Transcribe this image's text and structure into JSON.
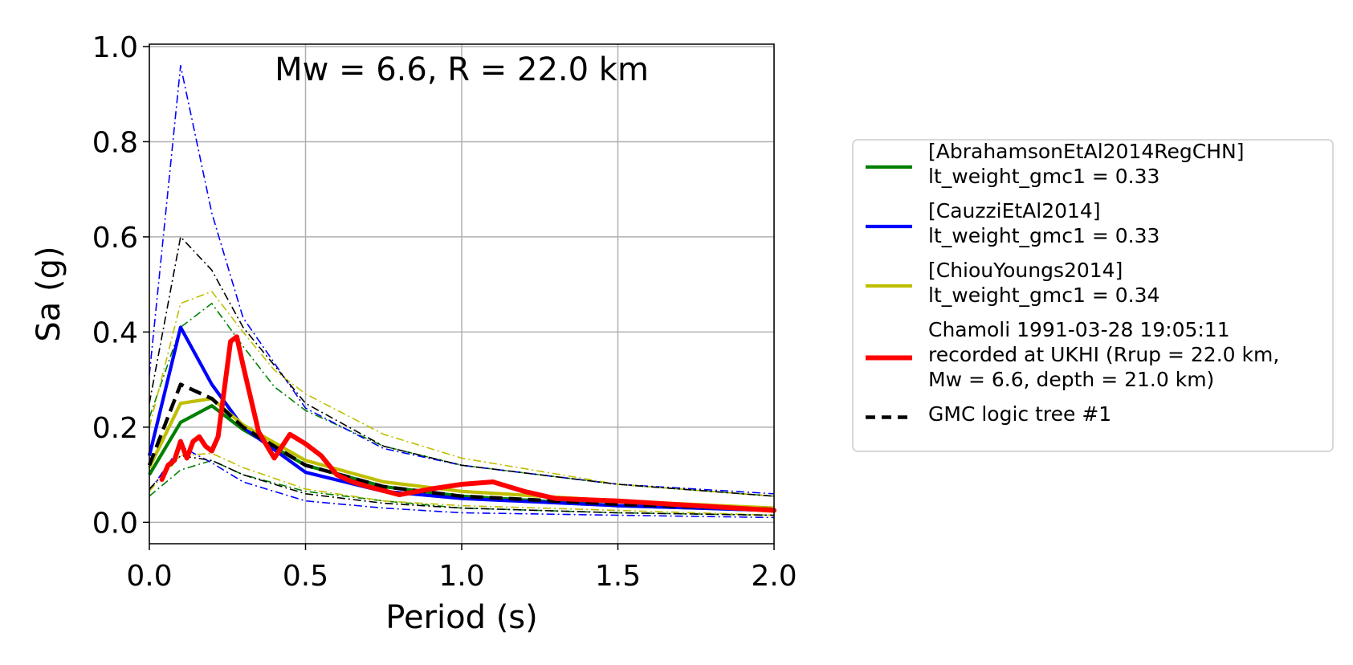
{
  "chart_data": {
    "type": "line",
    "title": "Mw = 6.6, R = 22.0 km",
    "xlabel": "Period (s)",
    "ylabel": "Sa (g)",
    "xlim": [
      0.0,
      2.0
    ],
    "ylim": [
      -0.045,
      1.005
    ],
    "xticks": [
      0.0,
      0.5,
      1.0,
      1.5,
      2.0
    ],
    "xtick_labels": [
      "0.0",
      "0.5",
      "1.0",
      "1.5",
      "2.0"
    ],
    "yticks": [
      0.0,
      0.2,
      0.4,
      0.6,
      0.8,
      1.0
    ],
    "ytick_labels": [
      "0.0",
      "0.2",
      "0.4",
      "0.6",
      "0.8",
      "1.0"
    ],
    "grid": true,
    "legend_position": "outside-right",
    "series": [
      {
        "name": "[AbrahamsonEtAl2014RegCHN]\nlt_weight_gmc1 = 0.33",
        "color": "#008000",
        "style": "solid",
        "role": "median",
        "x": [
          0.0,
          0.1,
          0.2,
          0.3,
          0.5,
          0.75,
          1.0,
          1.5,
          2.0
        ],
        "y": [
          0.1,
          0.21,
          0.245,
          0.195,
          0.12,
          0.075,
          0.055,
          0.035,
          0.025
        ]
      },
      {
        "name": "",
        "color": "#008000",
        "style": "dashdot",
        "role": "upper",
        "x": [
          0.0,
          0.1,
          0.2,
          0.3,
          0.4,
          0.5,
          0.75,
          1.0,
          1.5,
          2.0
        ],
        "y": [
          0.22,
          0.41,
          0.46,
          0.37,
          0.285,
          0.235,
          0.16,
          0.12,
          0.08,
          0.055
        ]
      },
      {
        "name": "",
        "color": "#008000",
        "style": "dashdot",
        "role": "lower",
        "x": [
          0.0,
          0.1,
          0.2,
          0.3,
          0.5,
          0.75,
          1.0,
          1.5,
          2.0
        ],
        "y": [
          0.055,
          0.11,
          0.13,
          0.1,
          0.065,
          0.045,
          0.03,
          0.02,
          0.015
        ]
      },
      {
        "name": "[CauzziEtAl2014]\nlt_weight_gmc1 = 0.33",
        "color": "#0000ff",
        "style": "solid",
        "role": "median",
        "x": [
          0.0,
          0.1,
          0.2,
          0.3,
          0.5,
          0.75,
          1.0,
          1.5,
          2.0
        ],
        "y": [
          0.14,
          0.41,
          0.29,
          0.2,
          0.105,
          0.065,
          0.05,
          0.035,
          0.025
        ]
      },
      {
        "name": "",
        "color": "#0000ff",
        "style": "dashdot",
        "role": "upper",
        "x": [
          0.0,
          0.1,
          0.2,
          0.3,
          0.5,
          0.75,
          1.0,
          1.5,
          2.0
        ],
        "y": [
          0.31,
          0.96,
          0.65,
          0.43,
          0.24,
          0.155,
          0.12,
          0.08,
          0.06
        ]
      },
      {
        "name": "",
        "color": "#0000ff",
        "style": "dashdot",
        "role": "lower",
        "x": [
          0.0,
          0.1,
          0.2,
          0.3,
          0.5,
          0.75,
          1.0,
          1.5,
          2.0
        ],
        "y": [
          0.065,
          0.16,
          0.125,
          0.085,
          0.045,
          0.03,
          0.02,
          0.015,
          0.01
        ]
      },
      {
        "name": "[ChiouYoungs2014]\nlt_weight_gmc1 = 0.34",
        "color": "#bfbf00",
        "style": "solid",
        "role": "median",
        "x": [
          0.0,
          0.1,
          0.2,
          0.3,
          0.5,
          0.75,
          1.0,
          1.5,
          2.0
        ],
        "y": [
          0.115,
          0.25,
          0.26,
          0.205,
          0.13,
          0.085,
          0.065,
          0.045,
          0.03
        ]
      },
      {
        "name": "",
        "color": "#bfbf00",
        "style": "dashdot",
        "role": "upper",
        "x": [
          0.0,
          0.1,
          0.2,
          0.3,
          0.4,
          0.5,
          0.75,
          1.0,
          1.5,
          2.0
        ],
        "y": [
          0.2,
          0.46,
          0.485,
          0.4,
          0.32,
          0.27,
          0.185,
          0.135,
          0.08,
          0.055
        ]
      },
      {
        "name": "",
        "color": "#bfbf00",
        "style": "dashdot",
        "role": "lower",
        "x": [
          0.0,
          0.1,
          0.2,
          0.3,
          0.5,
          0.75,
          1.0,
          1.5,
          2.0
        ],
        "y": [
          0.065,
          0.14,
          0.145,
          0.115,
          0.07,
          0.045,
          0.035,
          0.025,
          0.015
        ]
      },
      {
        "name": "GMC logic tree #1",
        "color": "#000000",
        "style": "dashed",
        "role": "median",
        "x": [
          0.0,
          0.1,
          0.2,
          0.3,
          0.5,
          0.75,
          1.0,
          1.5,
          2.0
        ],
        "y": [
          0.12,
          0.29,
          0.26,
          0.2,
          0.12,
          0.075,
          0.055,
          0.038,
          0.027
        ]
      },
      {
        "name": "",
        "color": "#000000",
        "style": "dashdot",
        "role": "upper",
        "x": [
          0.0,
          0.1,
          0.2,
          0.3,
          0.5,
          0.75,
          1.0,
          1.5,
          2.0
        ],
        "y": [
          0.25,
          0.6,
          0.53,
          0.41,
          0.25,
          0.16,
          0.12,
          0.08,
          0.055
        ]
      },
      {
        "name": "",
        "color": "#000000",
        "style": "dashdot",
        "role": "lower",
        "x": [
          0.0,
          0.1,
          0.2,
          0.3,
          0.5,
          0.75,
          1.0,
          1.5,
          2.0
        ],
        "y": [
          0.07,
          0.14,
          0.13,
          0.1,
          0.06,
          0.04,
          0.03,
          0.02,
          0.015
        ]
      },
      {
        "name": "Chamoli 1991-03-28 19:05:11\nrecorded at UKHI (Rrup = 22.0 km,\nMw = 6.6, depth = 21.0 km)",
        "color": "#ff0000",
        "style": "solid",
        "role": "record",
        "x": [
          0.04,
          0.06,
          0.08,
          0.1,
          0.12,
          0.14,
          0.16,
          0.18,
          0.2,
          0.22,
          0.24,
          0.26,
          0.28,
          0.3,
          0.35,
          0.4,
          0.45,
          0.5,
          0.55,
          0.6,
          0.65,
          0.7,
          0.8,
          0.9,
          1.0,
          1.1,
          1.2,
          1.3,
          1.5,
          1.75,
          2.0
        ],
        "y": [
          0.09,
          0.12,
          0.13,
          0.17,
          0.135,
          0.17,
          0.18,
          0.16,
          0.15,
          0.18,
          0.28,
          0.38,
          0.39,
          0.33,
          0.19,
          0.135,
          0.185,
          0.165,
          0.14,
          0.1,
          0.085,
          0.075,
          0.058,
          0.07,
          0.08,
          0.085,
          0.065,
          0.05,
          0.045,
          0.035,
          0.025
        ]
      }
    ],
    "legend": [
      {
        "lines": [
          "[AbrahamsonEtAl2014RegCHN]",
          "lt_weight_gmc1 = 0.33"
        ],
        "color": "#008000",
        "style": "solid"
      },
      {
        "lines": [
          "[CauzziEtAl2014]",
          "lt_weight_gmc1 = 0.33"
        ],
        "color": "#0000ff",
        "style": "solid"
      },
      {
        "lines": [
          "[ChiouYoungs2014]",
          "lt_weight_gmc1 = 0.34"
        ],
        "color": "#bfbf00",
        "style": "solid"
      },
      {
        "lines": [
          "Chamoli 1991-03-28 19:05:11",
          "recorded at UKHI (Rrup = 22.0 km,",
          "Mw = 6.6, depth = 21.0 km)"
        ],
        "color": "#ff0000",
        "style": "solid"
      },
      {
        "lines": [
          "GMC logic tree #1"
        ],
        "color": "#000000",
        "style": "dashed"
      }
    ]
  }
}
